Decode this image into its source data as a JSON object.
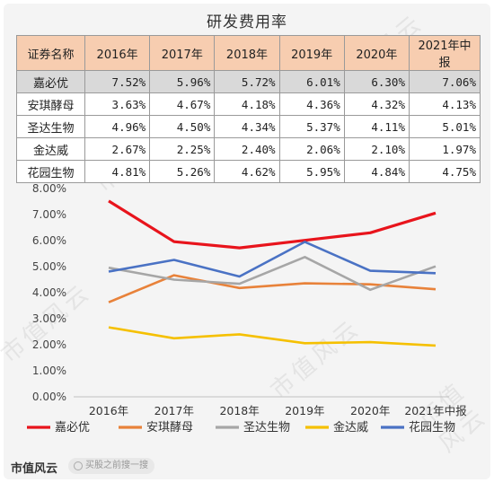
{
  "title": "研发费用率",
  "table": {
    "header": [
      "证券名称",
      "2016年",
      "2017年",
      "2018年",
      "2019年",
      "2020年",
      "2021年中报"
    ],
    "rows": [
      {
        "name": "嘉必优",
        "values": [
          "7.52%",
          "5.96%",
          "5.72%",
          "6.01%",
          "6.30%",
          "7.06%"
        ],
        "highlight": true
      },
      {
        "name": "安琪酵母",
        "values": [
          "3.63%",
          "4.67%",
          "4.18%",
          "4.36%",
          "4.32%",
          "4.13%"
        ],
        "highlight": false
      },
      {
        "name": "圣达生物",
        "values": [
          "4.96%",
          "4.50%",
          "4.34%",
          "5.37%",
          "4.11%",
          "5.01%"
        ],
        "highlight": false
      },
      {
        "name": "金达威",
        "values": [
          "2.67%",
          "2.25%",
          "2.40%",
          "2.06%",
          "2.10%",
          "1.97%"
        ],
        "highlight": false
      },
      {
        "name": "花园生物",
        "values": [
          "4.81%",
          "5.26%",
          "4.62%",
          "5.95%",
          "4.84%",
          "4.75%"
        ],
        "highlight": false
      }
    ]
  },
  "chart_data": {
    "type": "line",
    "categories": [
      "2016年",
      "2017年",
      "2018年",
      "2019年",
      "2020年",
      "2021年中报"
    ],
    "ylim": [
      0,
      8
    ],
    "yticks": [
      "0.00%",
      "1.00%",
      "2.00%",
      "3.00%",
      "4.00%",
      "5.00%",
      "6.00%",
      "7.00%",
      "8.00%"
    ],
    "grid": false,
    "legend_position": "bottom",
    "series": [
      {
        "name": "嘉必优",
        "color": "#e8141c",
        "values": [
          7.52,
          5.96,
          5.72,
          6.01,
          6.3,
          7.06
        ]
      },
      {
        "name": "安琪酵母",
        "color": "#e8823a",
        "values": [
          3.63,
          4.67,
          4.18,
          4.36,
          4.32,
          4.13
        ]
      },
      {
        "name": "圣达生物",
        "color": "#a6a6a6",
        "values": [
          4.96,
          4.5,
          4.34,
          5.37,
          4.11,
          5.01
        ]
      },
      {
        "name": "金达威",
        "color": "#f5c000",
        "values": [
          2.67,
          2.25,
          2.4,
          2.06,
          2.1,
          1.97
        ]
      },
      {
        "name": "花园生物",
        "color": "#4a72c4",
        "values": [
          4.81,
          5.26,
          4.62,
          5.95,
          4.84,
          4.75
        ]
      }
    ]
  },
  "footer": {
    "logo": "市值风云",
    "search_placeholder": "买股之前搜一搜"
  },
  "watermark": "市值风云"
}
